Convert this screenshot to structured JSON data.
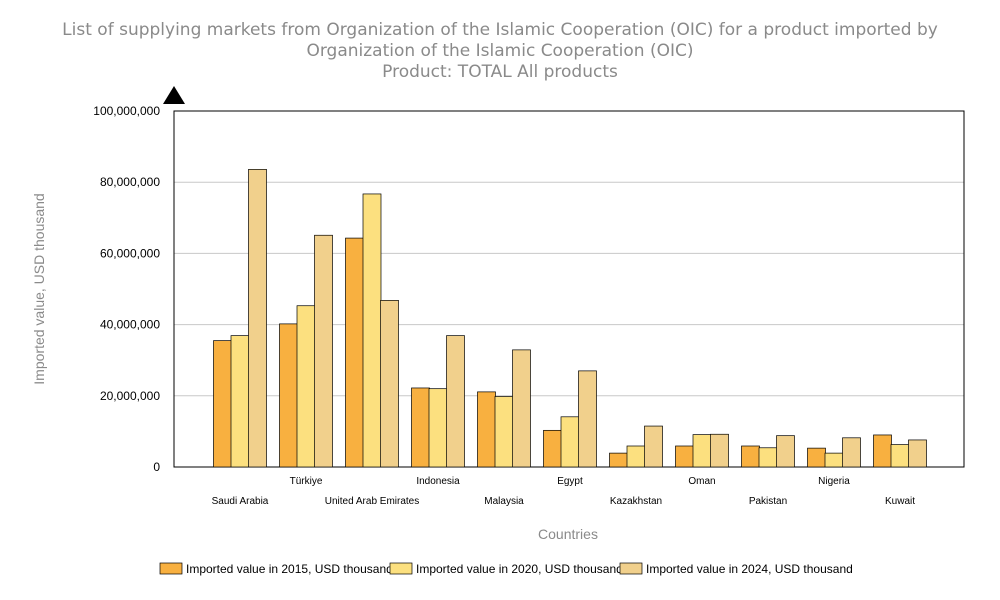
{
  "chart_data": {
    "type": "bar",
    "title_lines": [
      "List of supplying markets from Organization of the Islamic Cooperation (OIC) for a product imported by",
      "Organization of the Islamic Cooperation (OIC)",
      "Product: TOTAL All products"
    ],
    "xlabel": "Countries",
    "ylabel": "Imported value, USD thousand",
    "ylim": [
      0,
      100000000
    ],
    "yticks": [
      0,
      20000000,
      40000000,
      60000000,
      80000000,
      100000000
    ],
    "ytick_labels": [
      "0",
      "20,000,000",
      "40,000,000",
      "60,000,000",
      "80,000,000",
      "100,000,000"
    ],
    "grid": true,
    "legend_position": "bottom",
    "categories": [
      "Saudi Arabia",
      "Türkiye",
      "United Arab Emirates",
      "Indonesia",
      "Malaysia",
      "Egypt",
      "Kazakhstan",
      "Oman",
      "Pakistan",
      "Nigeria",
      "Kuwait"
    ],
    "series": [
      {
        "name": "Imported value in 2015, USD thousand",
        "color": "#f8b040",
        "values": [
          35500000,
          40200000,
          64300000,
          22200000,
          21100000,
          10300000,
          3900000,
          5900000,
          5900000,
          5300000,
          9000000
        ]
      },
      {
        "name": "Imported value in 2020, USD thousand",
        "color": "#fce07f",
        "values": [
          36900000,
          45300000,
          76700000,
          22000000,
          19800000,
          14100000,
          5900000,
          9100000,
          5400000,
          3900000,
          6300000
        ]
      },
      {
        "name": "Imported value in 2024, USD thousand",
        "color": "#f1d08c",
        "values": [
          83600000,
          65100000,
          46800000,
          36900000,
          32900000,
          27000000,
          11500000,
          9200000,
          8800000,
          8200000,
          7600000
        ]
      }
    ]
  }
}
